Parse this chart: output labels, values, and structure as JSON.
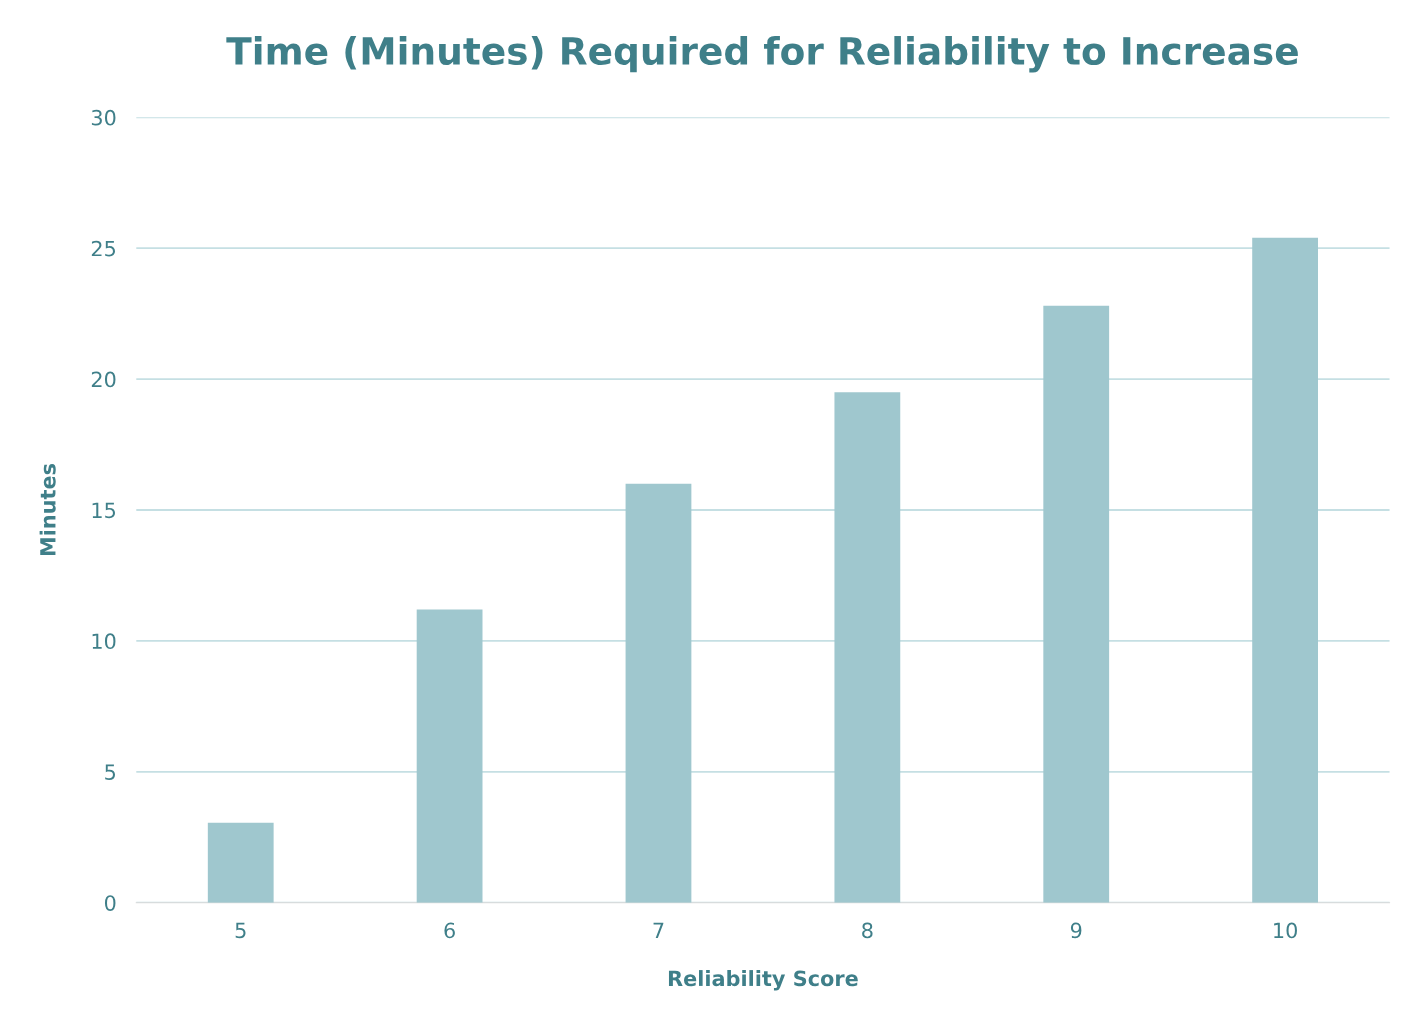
{
  "chart_data": {
    "type": "bar",
    "title": "Time (Minutes) Required for Reliability to Increase",
    "xlabel": "Reliability Score",
    "ylabel": "Minutes",
    "categories": [
      "5",
      "6",
      "7",
      "8",
      "9",
      "10"
    ],
    "values": [
      3.05,
      11.2,
      16.0,
      19.5,
      22.8,
      25.4
    ],
    "color": "#9fc7ce",
    "ylim": [
      0,
      30
    ],
    "yticks": [
      0,
      5,
      10,
      15,
      20,
      25,
      30
    ],
    "grid": "y",
    "legend": false
  }
}
